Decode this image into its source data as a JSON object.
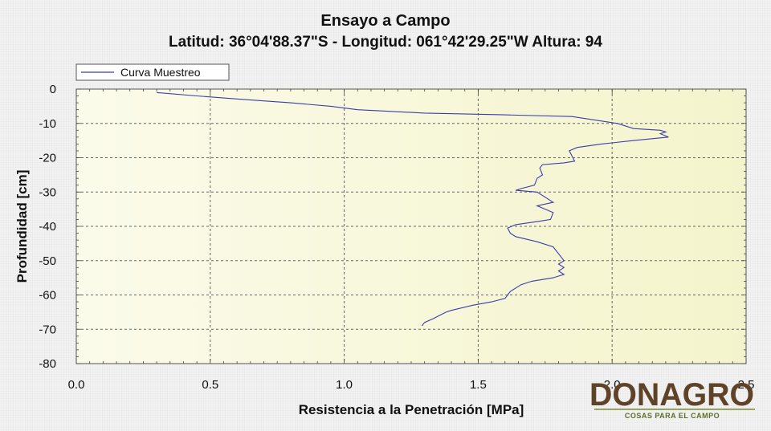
{
  "chart_data": {
    "type": "line",
    "title": "Ensayo a Campo",
    "subtitle": "Latitud: 36°04'88.37\"S - Longitud: 061°42'29.25\"W Altura: 94",
    "xlabel": "Resistencia a la Penetración [MPa]",
    "ylabel": "Profundidad [cm]",
    "xlim": [
      0,
      2.5
    ],
    "ylim": [
      -80,
      0
    ],
    "x_ticks": [
      "0.0",
      "0.5",
      "1.0",
      "1.5",
      "2.0",
      "2.5"
    ],
    "y_ticks": [
      "0",
      "-10",
      "-20",
      "-30",
      "-40",
      "-50",
      "-60",
      "-70",
      "-80"
    ],
    "grid": true,
    "legend_position": "top-left",
    "series": [
      {
        "name": "Curva Muestreo",
        "color": "#3c3caa",
        "points": [
          [
            0.3,
            -1
          ],
          [
            0.45,
            -2
          ],
          [
            0.62,
            -3
          ],
          [
            0.8,
            -4
          ],
          [
            0.95,
            -5
          ],
          [
            1.05,
            -6
          ],
          [
            1.3,
            -7
          ],
          [
            1.6,
            -7.5
          ],
          [
            1.85,
            -8
          ],
          [
            2.02,
            -10
          ],
          [
            2.08,
            -11.5
          ],
          [
            2.18,
            -12
          ],
          [
            2.2,
            -12.5
          ],
          [
            2.18,
            -13
          ],
          [
            2.21,
            -14
          ],
          [
            2.08,
            -15
          ],
          [
            1.96,
            -16
          ],
          [
            1.87,
            -17
          ],
          [
            1.84,
            -18
          ],
          [
            1.85,
            -19.5
          ],
          [
            1.86,
            -21
          ],
          [
            1.82,
            -21.5
          ],
          [
            1.74,
            -22
          ],
          [
            1.73,
            -23
          ],
          [
            1.74,
            -25
          ],
          [
            1.72,
            -26
          ],
          [
            1.71,
            -28
          ],
          [
            1.66,
            -29
          ],
          [
            1.64,
            -29.5
          ],
          [
            1.72,
            -30
          ],
          [
            1.76,
            -32
          ],
          [
            1.78,
            -33
          ],
          [
            1.72,
            -34
          ],
          [
            1.75,
            -35
          ],
          [
            1.78,
            -36
          ],
          [
            1.77,
            -38
          ],
          [
            1.73,
            -38.5
          ],
          [
            1.64,
            -39.5
          ],
          [
            1.61,
            -40.5
          ],
          [
            1.62,
            -42
          ],
          [
            1.64,
            -43
          ],
          [
            1.72,
            -44.5
          ],
          [
            1.78,
            -46
          ],
          [
            1.8,
            -48
          ],
          [
            1.82,
            -50
          ],
          [
            1.8,
            -51
          ],
          [
            1.82,
            -52
          ],
          [
            1.8,
            -53
          ],
          [
            1.82,
            -54
          ],
          [
            1.8,
            -54.5
          ],
          [
            1.78,
            -55
          ],
          [
            1.7,
            -56
          ],
          [
            1.66,
            -57
          ],
          [
            1.62,
            -59
          ],
          [
            1.61,
            -60
          ],
          [
            1.6,
            -61
          ],
          [
            1.55,
            -62
          ],
          [
            1.48,
            -63
          ],
          [
            1.4,
            -64.5
          ],
          [
            1.38,
            -65
          ],
          [
            1.33,
            -67
          ],
          [
            1.3,
            -68
          ],
          [
            1.29,
            -69
          ]
        ]
      }
    ]
  },
  "watermark": {
    "brand": "DONAGRO",
    "tagline": "COSAS PARA EL CAMPO"
  }
}
